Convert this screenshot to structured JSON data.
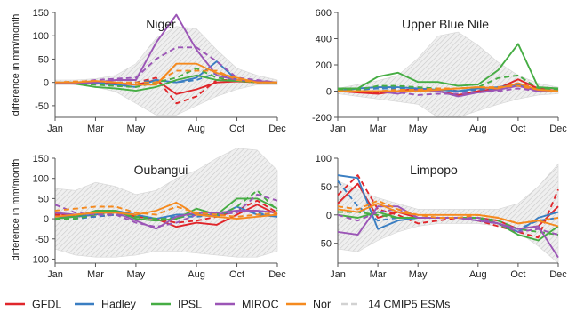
{
  "legend": {
    "items": [
      {
        "name": "GFDL",
        "color": "#e0262b"
      },
      {
        "name": "Hadley",
        "color": "#3a7ec2"
      },
      {
        "name": "IPSL",
        "color": "#46ad44"
      },
      {
        "name": "MIROC",
        "color": "#9b55b6"
      },
      {
        "name": "Nor",
        "color": "#f58a1f"
      },
      {
        "name": "14 CMIP5 ESMs",
        "color": "#d2d2d2"
      }
    ]
  },
  "chart_data": [
    {
      "type": "line",
      "title": "Niger",
      "ylabel": "difference in mm/month",
      "x_ticks": [
        "Jan",
        "Mar",
        "May",
        "Aug",
        "Oct",
        "Dec"
      ],
      "ylim": [
        -75,
        150
      ],
      "y_ticks": [
        -50,
        0,
        50,
        100,
        150
      ],
      "ensemble_band": {
        "upper": [
          5,
          5,
          8,
          15,
          40,
          95,
          120,
          115,
          70,
          30,
          15,
          5
        ],
        "lower": [
          -5,
          -5,
          -10,
          -20,
          -45,
          -70,
          -70,
          -50,
          -30,
          -15,
          -5,
          -5
        ]
      },
      "series": [
        {
          "name": "GFDL",
          "solid": [
            0,
            -2,
            -3,
            -2,
            -5,
            5,
            -25,
            -15,
            0,
            2,
            0,
            0
          ],
          "dashed": [
            0,
            -1,
            -2,
            -3,
            0,
            10,
            -45,
            -30,
            5,
            5,
            0,
            0
          ]
        },
        {
          "name": "Hadley",
          "solid": [
            0,
            0,
            -2,
            -5,
            -10,
            5,
            0,
            10,
            45,
            5,
            3,
            0
          ],
          "dashed": [
            0,
            0,
            0,
            0,
            0,
            5,
            0,
            5,
            20,
            5,
            2,
            0
          ]
        },
        {
          "name": "IPSL",
          "solid": [
            0,
            -3,
            -10,
            -13,
            -18,
            -10,
            5,
            15,
            5,
            3,
            0,
            0
          ],
          "dashed": [
            0,
            -2,
            -5,
            -8,
            -10,
            0,
            10,
            30,
            10,
            5,
            0,
            0
          ]
        },
        {
          "name": "MIROC",
          "solid": [
            -2,
            -3,
            0,
            5,
            5,
            85,
            145,
            70,
            15,
            5,
            3,
            0
          ],
          "dashed": [
            0,
            0,
            5,
            8,
            10,
            50,
            75,
            75,
            45,
            10,
            5,
            0
          ]
        },
        {
          "name": "Nor",
          "solid": [
            0,
            0,
            3,
            0,
            -5,
            -5,
            40,
            40,
            20,
            10,
            0,
            0
          ],
          "dashed": [
            0,
            2,
            3,
            0,
            0,
            0,
            25,
            25,
            25,
            5,
            0,
            0
          ]
        }
      ]
    },
    {
      "type": "line",
      "title": "Upper Blue Nile",
      "ylabel": "",
      "x_ticks": [
        "Jan",
        "Mar",
        "May",
        "Aug",
        "Oct",
        "Dec"
      ],
      "ylim": [
        -200,
        600
      ],
      "y_ticks": [
        -200,
        0,
        200,
        400,
        600
      ],
      "ensemble_band": {
        "upper": [
          20,
          50,
          80,
          120,
          250,
          420,
          450,
          350,
          220,
          120,
          60,
          30
        ],
        "lower": [
          -20,
          -40,
          -60,
          -80,
          -100,
          -200,
          -200,
          -150,
          -100,
          -60,
          -30,
          -20
        ]
      },
      "series": [
        {
          "name": "GFDL",
          "solid": [
            0,
            -10,
            -20,
            0,
            20,
            0,
            -30,
            0,
            20,
            90,
            20,
            0
          ],
          "dashed": [
            0,
            -5,
            -10,
            5,
            10,
            20,
            0,
            10,
            30,
            60,
            20,
            0
          ]
        },
        {
          "name": "Hadley",
          "solid": [
            0,
            20,
            30,
            30,
            20,
            10,
            0,
            20,
            30,
            50,
            10,
            0
          ],
          "dashed": [
            0,
            10,
            20,
            20,
            10,
            10,
            0,
            10,
            20,
            40,
            10,
            0
          ]
        },
        {
          "name": "IPSL",
          "solid": [
            20,
            20,
            110,
            140,
            70,
            70,
            40,
            50,
            160,
            360,
            30,
            20
          ],
          "dashed": [
            10,
            10,
            40,
            40,
            30,
            20,
            20,
            30,
            100,
            120,
            20,
            10
          ]
        },
        {
          "name": "MIROC",
          "solid": [
            0,
            0,
            0,
            -20,
            10,
            0,
            -40,
            -10,
            10,
            40,
            0,
            0
          ],
          "dashed": [
            0,
            0,
            0,
            -10,
            -30,
            -20,
            -20,
            -10,
            0,
            20,
            0,
            0
          ]
        },
        {
          "name": "Nor",
          "solid": [
            0,
            0,
            0,
            0,
            0,
            10,
            20,
            30,
            20,
            60,
            10,
            0
          ],
          "dashed": [
            0,
            0,
            0,
            10,
            10,
            20,
            20,
            30,
            30,
            40,
            10,
            0
          ]
        }
      ]
    },
    {
      "type": "line",
      "title": "Oubangui",
      "ylabel": "difference in mm/month",
      "x_ticks": [
        "Jan",
        "Mar",
        "May",
        "Aug",
        "Oct",
        "Dec"
      ],
      "ylim": [
        -110,
        150
      ],
      "y_ticks": [
        -100,
        -50,
        0,
        50,
        100,
        150
      ],
      "ensemble_band": {
        "upper": [
          75,
          70,
          90,
          80,
          60,
          70,
          100,
          120,
          150,
          175,
          170,
          120
        ],
        "lower": [
          -75,
          -90,
          -95,
          -95,
          -90,
          -80,
          -80,
          -85,
          -90,
          -95,
          -95,
          -80
        ]
      },
      "series": [
        {
          "name": "GFDL",
          "solid": [
            15,
            5,
            10,
            20,
            5,
            0,
            -20,
            -10,
            -15,
            10,
            35,
            10
          ],
          "dashed": [
            10,
            5,
            5,
            10,
            5,
            0,
            -10,
            -5,
            5,
            20,
            45,
            15
          ]
        },
        {
          "name": "Hadley",
          "solid": [
            5,
            5,
            10,
            20,
            10,
            0,
            10,
            10,
            5,
            30,
            10,
            5
          ],
          "dashed": [
            0,
            0,
            5,
            10,
            5,
            0,
            5,
            5,
            10,
            20,
            15,
            5
          ]
        },
        {
          "name": "IPSL",
          "solid": [
            0,
            5,
            20,
            20,
            0,
            -5,
            0,
            25,
            10,
            50,
            50,
            25
          ],
          "dashed": [
            0,
            0,
            10,
            15,
            5,
            0,
            0,
            15,
            5,
            30,
            70,
            20
          ]
        },
        {
          "name": "MIROC",
          "solid": [
            15,
            10,
            15,
            15,
            -5,
            -25,
            5,
            15,
            15,
            20,
            20,
            15
          ],
          "dashed": [
            35,
            15,
            10,
            10,
            -10,
            -20,
            -10,
            10,
            10,
            15,
            60,
            45
          ]
        },
        {
          "name": "Nor",
          "solid": [
            5,
            10,
            15,
            15,
            10,
            20,
            40,
            10,
            5,
            0,
            5,
            10
          ],
          "dashed": [
            20,
            25,
            30,
            30,
            15,
            10,
            30,
            15,
            10,
            5,
            10,
            15
          ]
        }
      ]
    },
    {
      "type": "line",
      "title": "Limpopo",
      "ylabel": "",
      "x_ticks": [
        "Jan",
        "Mar",
        "May",
        "Aug",
        "Oct",
        "Dec"
      ],
      "ylim": [
        -85,
        100
      ],
      "y_ticks": [
        -50,
        0,
        50,
        100
      ],
      "ensemble_band": {
        "upper": [
          60,
          45,
          30,
          20,
          10,
          10,
          10,
          10,
          10,
          20,
          50,
          90
        ],
        "lower": [
          -60,
          -65,
          -45,
          -30,
          -20,
          -15,
          -15,
          -15,
          -20,
          -30,
          -55,
          -85
        ]
      },
      "series": [
        {
          "name": "GFDL",
          "solid": [
            20,
            55,
            -5,
            5,
            -5,
            -5,
            -5,
            -5,
            -10,
            -25,
            -20,
            15
          ],
          "dashed": [
            35,
            70,
            10,
            0,
            -15,
            -10,
            -5,
            -10,
            -20,
            -30,
            -40,
            45
          ]
        },
        {
          "name": "Hadley",
          "solid": [
            70,
            65,
            -25,
            -10,
            -5,
            -5,
            -5,
            -5,
            -15,
            -30,
            -5,
            5
          ],
          "dashed": [
            60,
            15,
            -10,
            -5,
            -5,
            -5,
            -5,
            -10,
            -15,
            -25,
            -10,
            -5
          ]
        },
        {
          "name": "IPSL",
          "solid": [
            0,
            -5,
            5,
            -5,
            -5,
            -5,
            -5,
            -5,
            -15,
            -35,
            -45,
            -20
          ],
          "dashed": [
            5,
            5,
            0,
            -5,
            -5,
            -5,
            -5,
            -5,
            -10,
            -25,
            -30,
            -35
          ]
        },
        {
          "name": "MIROC",
          "solid": [
            -30,
            -35,
            15,
            15,
            -5,
            -5,
            -5,
            -10,
            -15,
            -25,
            -20,
            -75
          ],
          "dashed": [
            0,
            -10,
            5,
            10,
            -5,
            -5,
            -5,
            -5,
            -15,
            -30,
            -25,
            -35
          ]
        },
        {
          "name": "Nor",
          "solid": [
            10,
            5,
            20,
            5,
            0,
            0,
            0,
            0,
            -5,
            -15,
            -10,
            -20
          ],
          "dashed": [
            15,
            10,
            25,
            10,
            0,
            -5,
            -5,
            0,
            -5,
            -15,
            -10,
            -5
          ]
        }
      ]
    }
  ]
}
